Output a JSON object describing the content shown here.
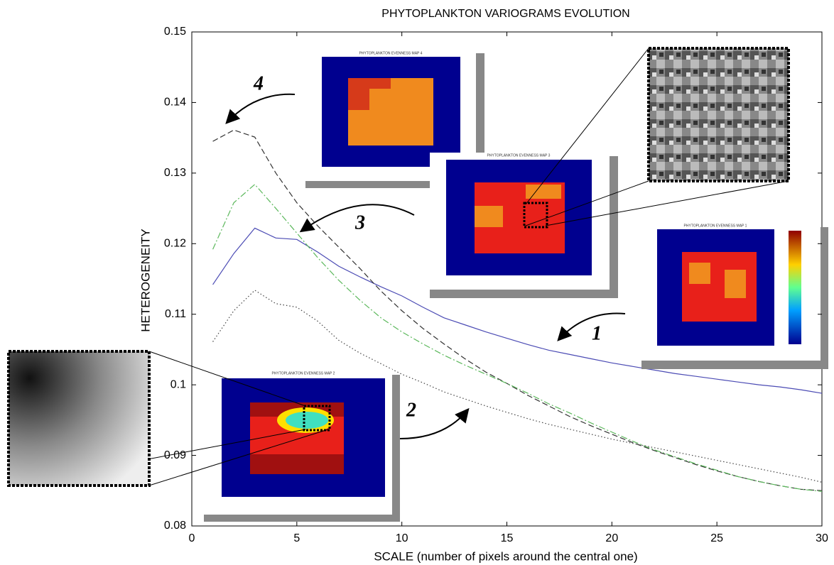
{
  "chart_data": {
    "type": "line",
    "title": "PHYTOPLANKTON VARIOGRAMS EVOLUTION",
    "x_label": "SCALE (number of pixels around the central one)",
    "y_label": "HETEROGENEITY",
    "x": [
      1,
      2,
      3,
      4,
      5,
      6,
      7,
      8,
      9,
      10,
      11,
      12,
      13,
      14,
      15,
      16,
      17,
      18,
      19,
      20,
      21,
      22,
      23,
      24,
      25,
      26,
      27,
      28,
      29,
      30
    ],
    "series": [
      {
        "color": "#4b4bb4",
        "linestyle": "solid",
        "values": [
          0.1142,
          0.1186,
          0.1222,
          0.1208,
          0.1206,
          0.1188,
          0.1168,
          0.1153,
          0.1139,
          0.1126,
          0.111,
          0.1095,
          0.1085,
          0.1075,
          0.1066,
          0.1057,
          0.1049,
          0.1043,
          0.1037,
          0.1031,
          0.1026,
          0.1021,
          0.1016,
          0.1012,
          0.1008,
          0.1004,
          0.1,
          0.0997,
          0.0993,
          0.0988
        ]
      },
      {
        "color": "#333333",
        "linestyle": "dashed",
        "values": [
          0.1345,
          0.1361,
          0.1351,
          0.13,
          0.1258,
          0.1225,
          0.1195,
          0.1165,
          0.1133,
          0.1105,
          0.108,
          0.1058,
          0.1037,
          0.1018,
          0.1002,
          0.0985,
          0.097,
          0.0955,
          0.0942,
          0.093,
          0.0918,
          0.0907,
          0.0897,
          0.0887,
          0.0878,
          0.087,
          0.0863,
          0.0857,
          0.0852,
          0.085
        ]
      },
      {
        "color": "#5cb85c",
        "linestyle": "dashdot",
        "values": [
          0.1192,
          0.1258,
          0.1284,
          0.125,
          0.1215,
          0.118,
          0.1148,
          0.112,
          0.1095,
          0.1075,
          0.1058,
          0.1042,
          0.1028,
          0.1015,
          0.1002,
          0.0988,
          0.0973,
          0.096,
          0.0946,
          0.0933,
          0.092,
          0.0908,
          0.0898,
          0.0888,
          0.0879,
          0.087,
          0.0863,
          0.0857,
          0.0852,
          0.0849
        ]
      },
      {
        "color": "#444444",
        "linestyle": "dotted",
        "values": [
          0.1061,
          0.1105,
          0.1134,
          0.1115,
          0.111,
          0.109,
          0.1063,
          0.1045,
          0.103,
          0.1015,
          0.1003,
          0.099,
          0.098,
          0.097,
          0.0961,
          0.0952,
          0.0944,
          0.0937,
          0.093,
          0.0923,
          0.0917,
          0.0911,
          0.0905,
          0.0899,
          0.0893,
          0.0887,
          0.0881,
          0.0875,
          0.0869,
          0.0862
        ]
      }
    ],
    "xlim": [
      0,
      30
    ],
    "xticks": [
      0,
      5,
      10,
      15,
      20,
      25,
      30
    ],
    "ylim": [
      0.08,
      0.15
    ],
    "yticks": [
      0.08,
      0.09,
      0.1,
      0.11,
      0.12,
      0.13,
      0.14,
      0.15
    ],
    "grid": false,
    "annotations": [
      "1",
      "2",
      "3",
      "4"
    ],
    "insets": [
      "PHYTOPLANKTON EVENNESS MAP 1",
      "PHYTOPLANKTON EVENNESS MAP 2",
      "PHYTOPLANKTON EVENNESS MAP 3",
      "PHYTOPLANKTON EVENNESS MAP 4"
    ]
  }
}
